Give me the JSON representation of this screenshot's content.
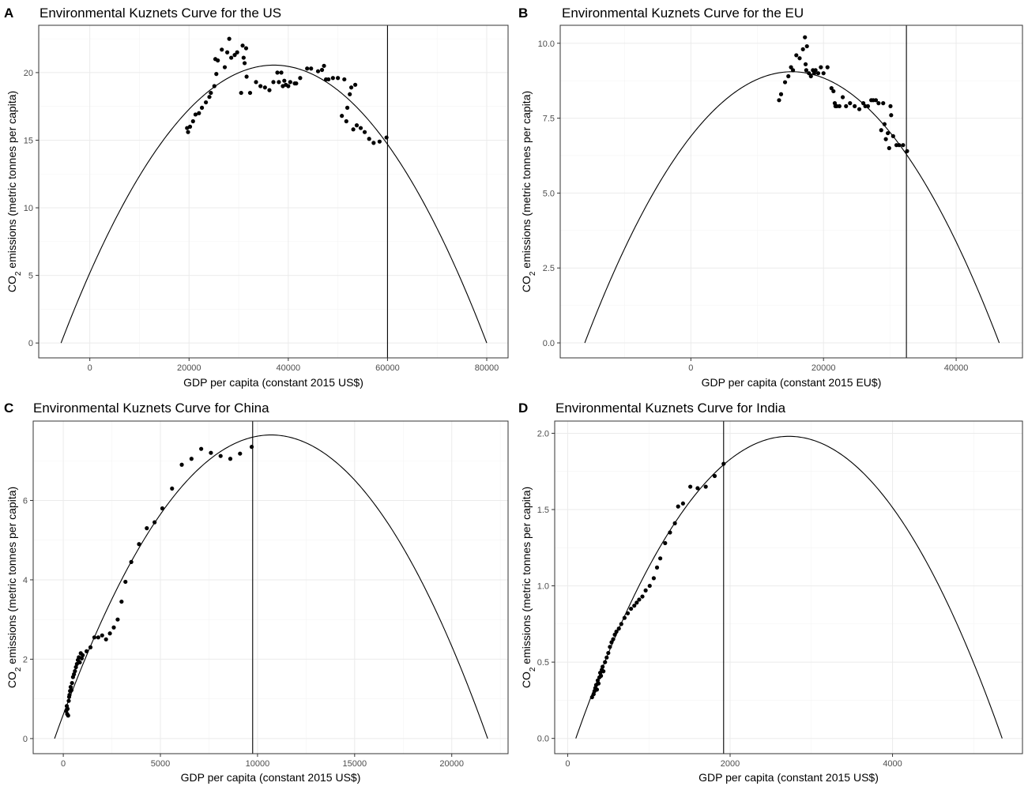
{
  "chart_data": [
    {
      "panel": "A",
      "type": "scatter",
      "title": "Environmental Kuznets Curve for the US",
      "xlabel": "GDP per capita (constant 2015 US$)",
      "ylabel_main": "CO",
      "ylabel_sub": "2",
      "ylabel_rest": " emissions (metric tonnes per capita)",
      "xlim": [
        -10300,
        84300
      ],
      "ylim": [
        -1.1,
        23.5
      ],
      "xticks": [
        0,
        20000,
        40000,
        60000,
        80000
      ],
      "yticks": [
        0,
        5,
        10,
        15,
        20
      ],
      "xtick_labels": [
        "0",
        "20000",
        "40000",
        "60000",
        "80000"
      ],
      "ytick_labels": [
        "0",
        "5",
        "10",
        "15",
        "20"
      ],
      "vline": 60000,
      "curve": {
        "x_start": -5800,
        "x_end": 80000,
        "vertex_x": 36700,
        "vertex_y": 20.55,
        "root_low": -5800,
        "root_high": 80000
      },
      "points": [
        [
          19600,
          15.9
        ],
        [
          19800,
          15.6
        ],
        [
          20200,
          16.0
        ],
        [
          20800,
          16.4
        ],
        [
          21300,
          16.9
        ],
        [
          22000,
          17.0
        ],
        [
          22600,
          17.4
        ],
        [
          23400,
          17.8
        ],
        [
          24100,
          18.2
        ],
        [
          24400,
          18.5
        ],
        [
          25100,
          19.0
        ],
        [
          25300,
          21.0
        ],
        [
          25500,
          19.9
        ],
        [
          25800,
          20.9
        ],
        [
          26600,
          21.7
        ],
        [
          27200,
          20.4
        ],
        [
          27700,
          21.5
        ],
        [
          28100,
          22.5
        ],
        [
          28500,
          21.1
        ],
        [
          29200,
          21.3
        ],
        [
          29700,
          21.5
        ],
        [
          30500,
          18.5
        ],
        [
          30800,
          22.0
        ],
        [
          31000,
          21.1
        ],
        [
          31200,
          20.7
        ],
        [
          31500,
          21.8
        ],
        [
          31600,
          19.7
        ],
        [
          32300,
          18.5
        ],
        [
          33500,
          19.3
        ],
        [
          34400,
          19.0
        ],
        [
          35300,
          18.9
        ],
        [
          36200,
          18.7
        ],
        [
          37000,
          19.3
        ],
        [
          37800,
          20.0
        ],
        [
          38100,
          19.3
        ],
        [
          38600,
          20.0
        ],
        [
          38900,
          19.0
        ],
        [
          39200,
          19.4
        ],
        [
          39500,
          19.1
        ],
        [
          40000,
          19.0
        ],
        [
          40400,
          19.3
        ],
        [
          41300,
          19.2
        ],
        [
          41600,
          19.2
        ],
        [
          42400,
          19.6
        ],
        [
          43800,
          20.3
        ],
        [
          44600,
          20.3
        ],
        [
          46000,
          20.1
        ],
        [
          46800,
          20.2
        ],
        [
          47200,
          20.5
        ],
        [
          47600,
          19.5
        ],
        [
          48100,
          19.5
        ],
        [
          49000,
          19.6
        ],
        [
          50000,
          19.6
        ],
        [
          50800,
          16.8
        ],
        [
          51300,
          19.5
        ],
        [
          51700,
          16.4
        ],
        [
          51900,
          17.4
        ],
        [
          52400,
          18.4
        ],
        [
          52700,
          18.9
        ],
        [
          53100,
          15.8
        ],
        [
          53500,
          19.1
        ],
        [
          53800,
          16.1
        ],
        [
          54600,
          15.9
        ],
        [
          55400,
          15.6
        ],
        [
          56300,
          15.1
        ],
        [
          57200,
          14.8
        ],
        [
          58400,
          14.9
        ],
        [
          59800,
          15.2
        ]
      ]
    },
    {
      "panel": "B",
      "type": "scatter",
      "title": "Environmental Kuznets Curve for the EU",
      "xlabel": "GDP per capita (constant 2015 EU$)",
      "ylabel_main": "CO",
      "ylabel_sub": "2",
      "ylabel_rest": " emissions (metric tonnes per capita)",
      "xlim": [
        -19700,
        50000
      ],
      "ylim": [
        -0.5,
        10.6
      ],
      "xticks": [
        0,
        20000,
        40000
      ],
      "yticks": [
        0,
        2.5,
        5,
        7.5,
        10
      ],
      "xtick_labels": [
        "0",
        "20000",
        "40000"
      ],
      "ytick_labels": [
        "0.0",
        "2.5",
        "5.0",
        "7.5",
        "10.0"
      ],
      "vline": 32500,
      "curve": {
        "x_start": -16000,
        "x_end": 46500,
        "vertex_x": 15250,
        "vertex_y": 9.05,
        "root_low": -16000,
        "root_high": 46500
      },
      "points": [
        [
          13300,
          8.1
        ],
        [
          13600,
          8.3
        ],
        [
          14200,
          8.7
        ],
        [
          14700,
          8.9
        ],
        [
          15100,
          9.2
        ],
        [
          15400,
          9.1
        ],
        [
          15900,
          9.6
        ],
        [
          16400,
          9.5
        ],
        [
          16900,
          9.8
        ],
        [
          17200,
          10.2
        ],
        [
          17300,
          9.3
        ],
        [
          17400,
          9.1
        ],
        [
          17500,
          9.9
        ],
        [
          17800,
          9.0
        ],
        [
          18100,
          8.9
        ],
        [
          18400,
          9.1
        ],
        [
          18600,
          9.0
        ],
        [
          18800,
          9.1
        ],
        [
          19200,
          9.0
        ],
        [
          19600,
          9.2
        ],
        [
          20000,
          9.0
        ],
        [
          20600,
          9.2
        ],
        [
          21200,
          8.5
        ],
        [
          21500,
          8.4
        ],
        [
          21700,
          8.0
        ],
        [
          21800,
          7.9
        ],
        [
          22000,
          7.9
        ],
        [
          22400,
          7.9
        ],
        [
          22900,
          8.2
        ],
        [
          23400,
          7.9
        ],
        [
          24000,
          8.0
        ],
        [
          24700,
          7.9
        ],
        [
          25400,
          7.8
        ],
        [
          26000,
          8.0
        ],
        [
          26300,
          7.9
        ],
        [
          26700,
          7.9
        ],
        [
          27200,
          8.1
        ],
        [
          27500,
          8.1
        ],
        [
          27900,
          8.1
        ],
        [
          28300,
          8.0
        ],
        [
          28700,
          7.1
        ],
        [
          29000,
          8.0
        ],
        [
          29200,
          7.3
        ],
        [
          29400,
          6.8
        ],
        [
          29700,
          7.0
        ],
        [
          29900,
          6.5
        ],
        [
          30100,
          7.9
        ],
        [
          30200,
          7.6
        ],
        [
          30500,
          6.9
        ],
        [
          31000,
          6.6
        ],
        [
          31400,
          6.6
        ],
        [
          32000,
          6.6
        ],
        [
          32600,
          6.4
        ]
      ]
    },
    {
      "panel": "C",
      "type": "scatter",
      "title": "Environmental Kuznets Curve for China",
      "xlabel": "GDP per capita (constant 2015 US$)",
      "ylabel_main": "CO",
      "ylabel_sub": "2",
      "ylabel_rest": " emissions (metric tonnes per capita)",
      "xlim": [
        -1550,
        22900
      ],
      "ylim": [
        -0.38,
        8.0
      ],
      "xticks": [
        0,
        5000,
        10000,
        15000,
        20000
      ],
      "yticks": [
        0,
        2,
        4,
        6
      ],
      "xtick_labels": [
        "0",
        "5000",
        "10000",
        "15000",
        "20000"
      ],
      "ytick_labels": [
        "0",
        "2",
        "4",
        "6"
      ],
      "vline": 9750,
      "curve": {
        "x_start": -450,
        "x_end": 21850,
        "vertex_x": 10700,
        "vertex_y": 7.65,
        "root_low": -450,
        "root_high": 21850
      },
      "points": [
        [
          150,
          0.7
        ],
        [
          180,
          0.82
        ],
        [
          200,
          0.62
        ],
        [
          220,
          0.75
        ],
        [
          250,
          0.58
        ],
        [
          280,
          0.95
        ],
        [
          300,
          1.05
        ],
        [
          320,
          1.1
        ],
        [
          350,
          1.2
        ],
        [
          380,
          1.3
        ],
        [
          420,
          1.22
        ],
        [
          450,
          1.4
        ],
        [
          500,
          1.55
        ],
        [
          550,
          1.62
        ],
        [
          600,
          1.7
        ],
        [
          650,
          1.8
        ],
        [
          700,
          1.88
        ],
        [
          750,
          1.98
        ],
        [
          800,
          2.05
        ],
        [
          850,
          1.92
        ],
        [
          900,
          2.15
        ],
        [
          950,
          2.02
        ],
        [
          1000,
          2.1
        ],
        [
          1200,
          2.2
        ],
        [
          1400,
          2.3
        ],
        [
          1600,
          2.55
        ],
        [
          1800,
          2.55
        ],
        [
          2000,
          2.6
        ],
        [
          2200,
          2.5
        ],
        [
          2400,
          2.65
        ],
        [
          2600,
          2.8
        ],
        [
          2800,
          3.0
        ],
        [
          3000,
          3.45
        ],
        [
          3200,
          3.95
        ],
        [
          3500,
          4.45
        ],
        [
          3900,
          4.9
        ],
        [
          4300,
          5.3
        ],
        [
          4700,
          5.45
        ],
        [
          5100,
          5.8
        ],
        [
          5600,
          6.3
        ],
        [
          6100,
          6.9
        ],
        [
          6600,
          7.05
        ],
        [
          7100,
          7.3
        ],
        [
          7600,
          7.2
        ],
        [
          8100,
          7.12
        ],
        [
          8600,
          7.05
        ],
        [
          9100,
          7.18
        ],
        [
          9700,
          7.35
        ]
      ]
    },
    {
      "panel": "D",
      "type": "scatter",
      "title": "Environmental Kuznets Curve for India",
      "xlabel": "GDP per capita (constant 2015 US$)",
      "ylabel_main": "CO",
      "ylabel_sub": "2",
      "ylabel_rest": " emissions (metric tonnes per capita)",
      "xlim": [
        -160,
        5600
      ],
      "ylim": [
        -0.1,
        2.08
      ],
      "xticks": [
        0,
        2000,
        4000
      ],
      "yticks": [
        0,
        0.5,
        1,
        1.5,
        2
      ],
      "xtick_labels": [
        "0",
        "2000",
        "4000"
      ],
      "ytick_labels": [
        "0.0",
        "0.5",
        "1.0",
        "1.5",
        "2.0"
      ],
      "vline": 1920,
      "curve": {
        "x_start": 100,
        "x_end": 5350,
        "vertex_x": 2725,
        "vertex_y": 1.98,
        "root_low": 100,
        "root_high": 5350
      },
      "points": [
        [
          300,
          0.27
        ],
        [
          320,
          0.29
        ],
        [
          330,
          0.31
        ],
        [
          340,
          0.33
        ],
        [
          350,
          0.35
        ],
        [
          360,
          0.32
        ],
        [
          370,
          0.38
        ],
        [
          380,
          0.36
        ],
        [
          390,
          0.4
        ],
        [
          400,
          0.43
        ],
        [
          410,
          0.41
        ],
        [
          420,
          0.45
        ],
        [
          430,
          0.47
        ],
        [
          440,
          0.44
        ],
        [
          460,
          0.5
        ],
        [
          480,
          0.53
        ],
        [
          500,
          0.56
        ],
        [
          520,
          0.6
        ],
        [
          540,
          0.63
        ],
        [
          560,
          0.65
        ],
        [
          580,
          0.68
        ],
        [
          600,
          0.7
        ],
        [
          630,
          0.72
        ],
        [
          660,
          0.75
        ],
        [
          700,
          0.79
        ],
        [
          740,
          0.82
        ],
        [
          780,
          0.85
        ],
        [
          820,
          0.87
        ],
        [
          850,
          0.89
        ],
        [
          880,
          0.91
        ],
        [
          920,
          0.93
        ],
        [
          960,
          0.97
        ],
        [
          1010,
          1.0
        ],
        [
          1060,
          1.05
        ],
        [
          1100,
          1.12
        ],
        [
          1140,
          1.18
        ],
        [
          1200,
          1.28
        ],
        [
          1260,
          1.35
        ],
        [
          1320,
          1.41
        ],
        [
          1360,
          1.52
        ],
        [
          1420,
          1.54
        ],
        [
          1510,
          1.65
        ],
        [
          1600,
          1.64
        ],
        [
          1700,
          1.65
        ],
        [
          1810,
          1.72
        ],
        [
          1920,
          1.8
        ]
      ]
    }
  ]
}
